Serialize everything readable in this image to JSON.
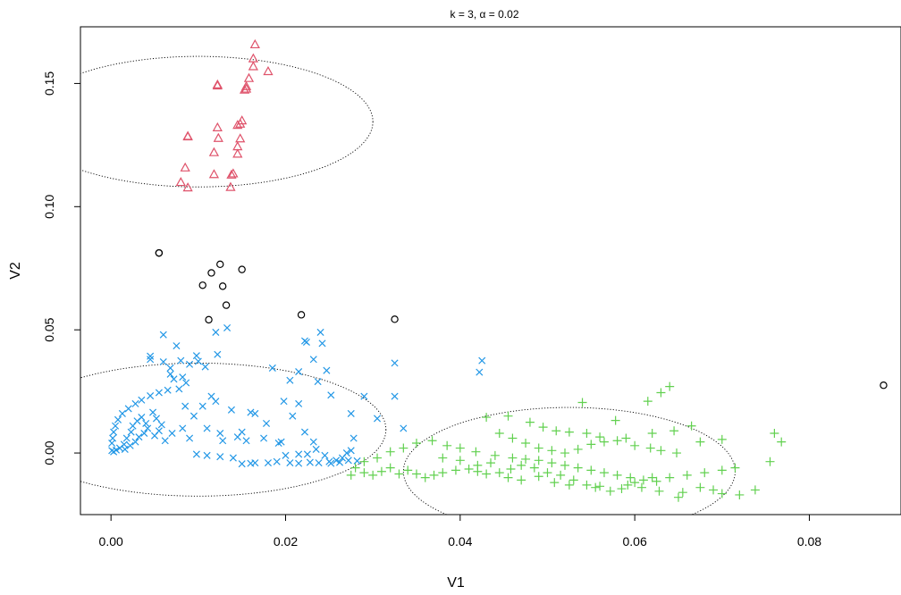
{
  "chart_data": {
    "type": "scatter",
    "title": "k = 3, α = 0.02",
    "xlabel": "V1",
    "ylabel": "V2",
    "xlim": [
      -0.0035,
      0.0905
    ],
    "ylim": [
      -0.025,
      0.173
    ],
    "xticks": [
      0.0,
      0.02,
      0.04,
      0.06,
      0.08
    ],
    "xtick_labels": [
      "0.00",
      "0.02",
      "0.04",
      "0.06",
      "0.08"
    ],
    "yticks": [
      0.0,
      0.05,
      0.1,
      0.15
    ],
    "ytick_labels": [
      "0.00",
      "0.05",
      "0.10",
      "0.15"
    ],
    "grid": false,
    "series": [
      {
        "marker": "circle",
        "color": "#000000",
        "points": [
          [
            0.0055,
            0.0812
          ],
          [
            0.0055,
            0.0812
          ],
          [
            0.0105,
            0.0681
          ],
          [
            0.0125,
            0.0766
          ],
          [
            0.0115,
            0.0731
          ],
          [
            0.0128,
            0.0677
          ],
          [
            0.0132,
            0.06
          ],
          [
            0.0112,
            0.0541
          ],
          [
            0.015,
            0.0745
          ],
          [
            0.0218,
            0.0561
          ],
          [
            0.0325,
            0.0543
          ],
          [
            0.0885,
            0.0275
          ]
        ]
      },
      {
        "marker": "triangle",
        "color": "#DF536B",
        "points": [
          [
            0.0165,
            0.1657
          ],
          [
            0.0163,
            0.16
          ],
          [
            0.0163,
            0.1568
          ],
          [
            0.018,
            0.1548
          ],
          [
            0.0158,
            0.152
          ],
          [
            0.0122,
            0.1494
          ],
          [
            0.0122,
            0.149
          ],
          [
            0.0155,
            0.1487
          ],
          [
            0.0153,
            0.1473
          ],
          [
            0.0155,
            0.1477
          ],
          [
            0.015,
            0.1348
          ],
          [
            0.0148,
            0.1335
          ],
          [
            0.0145,
            0.133
          ],
          [
            0.0122,
            0.132
          ],
          [
            0.0088,
            0.1285
          ],
          [
            0.0088,
            0.1283
          ],
          [
            0.0123,
            0.1277
          ],
          [
            0.0148,
            0.1275
          ],
          [
            0.0145,
            0.1243
          ],
          [
            0.0145,
            0.1213
          ],
          [
            0.0118,
            0.1219
          ],
          [
            0.0085,
            0.1157
          ],
          [
            0.0118,
            0.113
          ],
          [
            0.0138,
            0.1128
          ],
          [
            0.014,
            0.1133
          ],
          [
            0.008,
            0.1098
          ],
          [
            0.0088,
            0.1076
          ],
          [
            0.0137,
            0.1078
          ]
        ]
      },
      {
        "marker": "x",
        "color": "#2297E6",
        "points": [
          [
            0.006,
            0.048
          ],
          [
            0.0075,
            0.0435
          ],
          [
            0.012,
            0.049
          ],
          [
            0.0133,
            0.0508
          ],
          [
            0.0045,
            0.0393
          ],
          [
            0.0045,
            0.038
          ],
          [
            0.006,
            0.037
          ],
          [
            0.0068,
            0.0345
          ],
          [
            0.008,
            0.0375
          ],
          [
            0.009,
            0.036
          ],
          [
            0.0098,
            0.0395
          ],
          [
            0.01,
            0.0372
          ],
          [
            0.0108,
            0.035
          ],
          [
            0.0122,
            0.04
          ],
          [
            0.0068,
            0.032
          ],
          [
            0.0072,
            0.03
          ],
          [
            0.0082,
            0.0308
          ],
          [
            0.0086,
            0.0285
          ],
          [
            0.0078,
            0.026
          ],
          [
            0.0065,
            0.0255
          ],
          [
            0.0055,
            0.0245
          ],
          [
            0.0045,
            0.0232
          ],
          [
            0.0035,
            0.0215
          ],
          [
            0.0028,
            0.02
          ],
          [
            0.002,
            0.018
          ],
          [
            0.0013,
            0.016
          ],
          [
            0.0008,
            0.0135
          ],
          [
            0.0005,
            0.011
          ],
          [
            0.0003,
            0.0085
          ],
          [
            0.0002,
            0.006
          ],
          [
            0.0001,
            0.004
          ],
          [
            0.0001,
            0.001
          ],
          [
            0.0003,
            0.0005
          ],
          [
            0.0006,
            0.0012
          ],
          [
            0.001,
            0.002
          ],
          [
            0.0015,
            0.0035
          ],
          [
            0.0018,
            0.006
          ],
          [
            0.0023,
            0.0085
          ],
          [
            0.0025,
            0.011
          ],
          [
            0.003,
            0.013
          ],
          [
            0.0035,
            0.0145
          ],
          [
            0.004,
            0.012
          ],
          [
            0.0042,
            0.01
          ],
          [
            0.0038,
            0.008
          ],
          [
            0.0032,
            0.0065
          ],
          [
            0.0028,
            0.0045
          ],
          [
            0.0022,
            0.003
          ],
          [
            0.0016,
            0.0015
          ],
          [
            0.0048,
            0.0165
          ],
          [
            0.0052,
            0.014
          ],
          [
            0.0058,
            0.0115
          ],
          [
            0.0055,
            0.009
          ],
          [
            0.005,
            0.007
          ],
          [
            0.0062,
            0.005
          ],
          [
            0.007,
            0.008
          ],
          [
            0.0085,
            0.019
          ],
          [
            0.0095,
            0.015
          ],
          [
            0.0082,
            0.01
          ],
          [
            0.009,
            0.006
          ],
          [
            0.0105,
            0.019
          ],
          [
            0.0115,
            0.023
          ],
          [
            0.012,
            0.021
          ],
          [
            0.011,
            0.01
          ],
          [
            0.0125,
            0.008
          ],
          [
            0.0128,
            0.005
          ],
          [
            0.0138,
            0.0175
          ],
          [
            0.0145,
            0.0065
          ],
          [
            0.015,
            0.0085
          ],
          [
            0.0155,
            0.005
          ],
          [
            0.0175,
            0.006
          ],
          [
            0.0185,
            0.0345
          ],
          [
            0.0205,
            0.0295
          ],
          [
            0.0215,
            0.033
          ],
          [
            0.0222,
            0.0455
          ],
          [
            0.0224,
            0.045
          ],
          [
            0.024,
            0.049
          ],
          [
            0.0242,
            0.0445
          ],
          [
            0.0232,
            0.038
          ],
          [
            0.0247,
            0.0335
          ],
          [
            0.0237,
            0.029
          ],
          [
            0.0252,
            0.0235
          ],
          [
            0.0275,
            0.016
          ],
          [
            0.029,
            0.023
          ],
          [
            0.0305,
            0.014
          ],
          [
            0.0325,
            0.0365
          ],
          [
            0.0335,
            0.01
          ],
          [
            0.0325,
            0.023
          ],
          [
            0.0425,
            0.0375
          ],
          [
            0.0422,
            0.0328
          ],
          [
            0.0165,
            0.016
          ],
          [
            0.016,
            0.0165
          ],
          [
            0.0178,
            0.012
          ],
          [
            0.0195,
            0.0045
          ],
          [
            0.0192,
            0.004
          ],
          [
            0.0198,
            0.021
          ],
          [
            0.0215,
            0.02
          ],
          [
            0.0208,
            0.015
          ],
          [
            0.0222,
            0.0085
          ],
          [
            0.0232,
            0.0045
          ],
          [
            0.0235,
            0.0015
          ],
          [
            0.0245,
            -0.001
          ],
          [
            0.025,
            -0.0035
          ],
          [
            0.0258,
            -0.003
          ],
          [
            0.0265,
            -0.002
          ],
          [
            0.027,
            0.0
          ],
          [
            0.0275,
            0.001
          ],
          [
            0.0278,
            0.006
          ],
          [
            0.0225,
            -0.0005
          ],
          [
            0.0215,
            -0.0005
          ],
          [
            0.02,
            -0.001
          ],
          [
            0.019,
            -0.0035
          ],
          [
            0.018,
            -0.004
          ],
          [
            0.0165,
            -0.004
          ],
          [
            0.016,
            -0.0042
          ],
          [
            0.015,
            -0.0044
          ],
          [
            0.014,
            -0.002
          ],
          [
            0.0125,
            -0.0015
          ],
          [
            0.011,
            -0.001
          ],
          [
            0.0098,
            -0.0005
          ],
          [
            0.0205,
            -0.004
          ],
          [
            0.0215,
            -0.0042
          ],
          [
            0.0228,
            -0.0038
          ],
          [
            0.0238,
            -0.004
          ],
          [
            0.0252,
            -0.0042
          ],
          [
            0.0262,
            -0.0038
          ],
          [
            0.0272,
            -0.003
          ],
          [
            0.0282,
            -0.0032
          ]
        ]
      },
      {
        "marker": "plus",
        "color": "#61D04F",
        "points": [
          [
            0.063,
            0.0245
          ],
          [
            0.064,
            0.027
          ],
          [
            0.0615,
            0.021
          ],
          [
            0.054,
            0.0205
          ],
          [
            0.0578,
            0.0132
          ],
          [
            0.043,
            0.0145
          ],
          [
            0.0455,
            0.015
          ],
          [
            0.048,
            0.0125
          ],
          [
            0.0495,
            0.0105
          ],
          [
            0.051,
            0.009
          ],
          [
            0.0525,
            0.0085
          ],
          [
            0.0545,
            0.008
          ],
          [
            0.056,
            0.0065
          ],
          [
            0.058,
            0.005
          ],
          [
            0.06,
            0.003
          ],
          [
            0.0618,
            0.002
          ],
          [
            0.063,
            0.001
          ],
          [
            0.0648,
            0.0
          ],
          [
            0.0675,
            0.0045
          ],
          [
            0.07,
            0.0055
          ],
          [
            0.076,
            0.008
          ],
          [
            0.0768,
            0.0045
          ],
          [
            0.0755,
            -0.0035
          ],
          [
            0.0738,
            -0.015
          ],
          [
            0.072,
            -0.017
          ],
          [
            0.07,
            -0.0165
          ],
          [
            0.0675,
            -0.014
          ],
          [
            0.065,
            -0.018
          ],
          [
            0.062,
            -0.01
          ],
          [
            0.06,
            -0.012
          ],
          [
            0.0585,
            -0.0145
          ],
          [
            0.056,
            -0.0135
          ],
          [
            0.0545,
            -0.013
          ],
          [
            0.053,
            -0.011
          ],
          [
            0.0515,
            -0.009
          ],
          [
            0.05,
            -0.008
          ],
          [
            0.0485,
            -0.006
          ],
          [
            0.047,
            -0.005
          ],
          [
            0.0458,
            -0.0065
          ],
          [
            0.0445,
            -0.008
          ],
          [
            0.043,
            -0.0085
          ],
          [
            0.042,
            -0.0075
          ],
          [
            0.041,
            -0.0065
          ],
          [
            0.0395,
            -0.007
          ],
          [
            0.038,
            -0.008
          ],
          [
            0.037,
            -0.009
          ],
          [
            0.036,
            -0.01
          ],
          [
            0.035,
            -0.0085
          ],
          [
            0.034,
            -0.007
          ],
          [
            0.033,
            -0.0085
          ],
          [
            0.032,
            -0.006
          ],
          [
            0.031,
            -0.0075
          ],
          [
            0.03,
            -0.009
          ],
          [
            0.029,
            -0.008
          ],
          [
            0.028,
            -0.006
          ],
          [
            0.0275,
            -0.009
          ],
          [
            0.0368,
            0.005
          ],
          [
            0.0385,
            0.003
          ],
          [
            0.04,
            0.002
          ],
          [
            0.0418,
            0.0005
          ],
          [
            0.044,
            -0.001
          ],
          [
            0.046,
            -0.002
          ],
          [
            0.0475,
            -0.0025
          ],
          [
            0.049,
            -0.003
          ],
          [
            0.0505,
            -0.004
          ],
          [
            0.052,
            -0.005
          ],
          [
            0.0535,
            -0.006
          ],
          [
            0.055,
            -0.007
          ],
          [
            0.0565,
            -0.008
          ],
          [
            0.058,
            -0.009
          ],
          [
            0.0595,
            -0.01
          ],
          [
            0.061,
            -0.011
          ],
          [
            0.0625,
            -0.0115
          ],
          [
            0.064,
            -0.01
          ],
          [
            0.066,
            -0.009
          ],
          [
            0.068,
            -0.008
          ],
          [
            0.07,
            -0.007
          ],
          [
            0.0715,
            -0.006
          ],
          [
            0.0445,
            0.008
          ],
          [
            0.046,
            0.006
          ],
          [
            0.0475,
            0.004
          ],
          [
            0.049,
            0.002
          ],
          [
            0.0505,
            0.001
          ],
          [
            0.052,
            0.0
          ],
          [
            0.0535,
            0.0015
          ],
          [
            0.055,
            0.0035
          ],
          [
            0.0565,
            0.0045
          ],
          [
            0.059,
            0.006
          ],
          [
            0.062,
            0.008
          ],
          [
            0.0645,
            0.009
          ],
          [
            0.0665,
            0.011
          ],
          [
            0.035,
            0.004
          ],
          [
            0.0335,
            0.002
          ],
          [
            0.032,
            0.0005
          ],
          [
            0.0305,
            -0.002
          ],
          [
            0.029,
            -0.0035
          ],
          [
            0.038,
            -0.002
          ],
          [
            0.04,
            -0.003
          ],
          [
            0.042,
            -0.005
          ],
          [
            0.0435,
            -0.004
          ],
          [
            0.0455,
            -0.01
          ],
          [
            0.047,
            -0.011
          ],
          [
            0.049,
            -0.0095
          ],
          [
            0.0508,
            -0.012
          ],
          [
            0.0525,
            -0.013
          ],
          [
            0.0555,
            -0.014
          ],
          [
            0.0572,
            -0.0155
          ],
          [
            0.0592,
            -0.013
          ],
          [
            0.0608,
            -0.014
          ],
          [
            0.0628,
            -0.0155
          ],
          [
            0.0655,
            -0.016
          ],
          [
            0.069,
            -0.015
          ]
        ]
      }
    ],
    "ellipses": [
      {
        "cx": 0.01,
        "cy": 0.1345,
        "rx": 0.02,
        "ry": 0.0265
      },
      {
        "cx": 0.01,
        "cy": 0.0095,
        "rx": 0.0215,
        "ry": 0.027
      },
      {
        "cx": 0.0525,
        "cy": -0.0075,
        "rx": 0.019,
        "ry": 0.026
      }
    ]
  }
}
